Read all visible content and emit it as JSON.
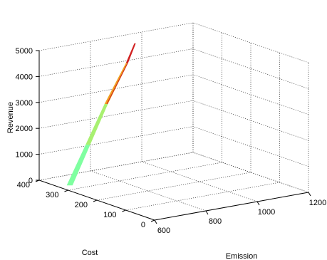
{
  "chart_data": {
    "type": "surface",
    "title": "",
    "xlabel": "Emission",
    "ylabel": "Cost",
    "zlabel": "Revenue",
    "xlim": [
      600,
      1200
    ],
    "ylim": [
      0,
      400
    ],
    "zlim": [
      0,
      5000
    ],
    "x_ticks": [
      "600",
      "800",
      "1000",
      "1200"
    ],
    "y_ticks": [
      "0",
      "100",
      "200",
      "300",
      "400"
    ],
    "z_ticks": [
      "0",
      "1000",
      "2000",
      "3000",
      "4000",
      "5000"
    ],
    "grid": true,
    "colormap": [
      "#7fffa0",
      "#a8f070",
      "#e6e830",
      "#f0a020",
      "#d02020"
    ],
    "surface_points": [
      {
        "emission": 640,
        "cost": 330,
        "revenue": 0
      },
      {
        "emission": 700,
        "cost": 320,
        "revenue": 1500
      },
      {
        "emission": 760,
        "cost": 310,
        "revenue": 3000
      },
      {
        "emission": 830,
        "cost": 300,
        "revenue": 4500
      },
      {
        "emission": 860,
        "cost": 300,
        "revenue": 5200
      }
    ]
  }
}
